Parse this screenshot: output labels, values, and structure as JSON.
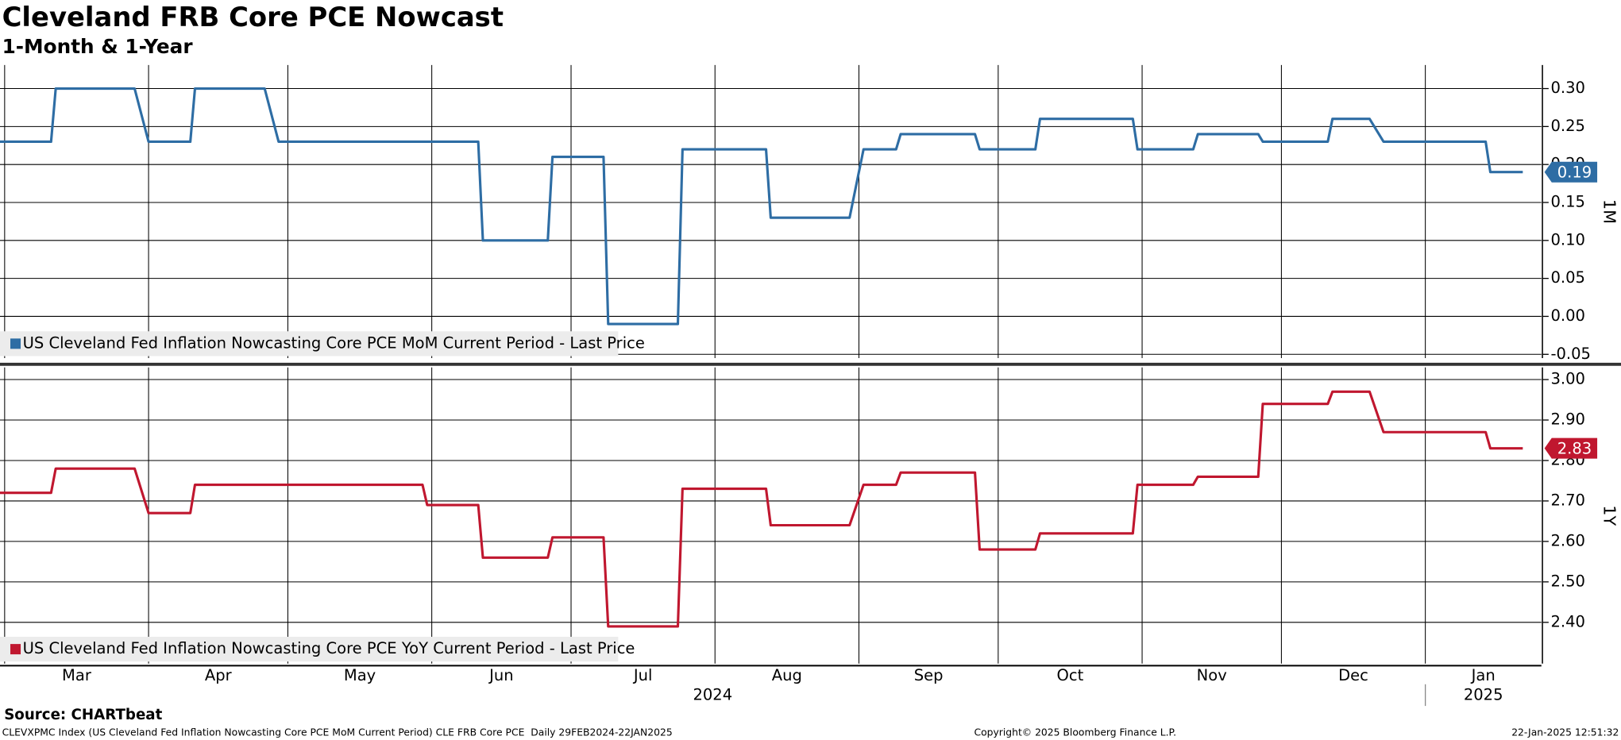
{
  "title": "Cleveland FRB Core PCE Nowcast",
  "subtitle": "1-Month & 1-Year",
  "source": "Source: CHARTbeat",
  "footer_left": "CLEVXPMC Index (US Cleveland Fed Inflation Nowcasting Core PCE MoM Current Period) CLE FRB Core PCE  Daily 29FEB2024-22JAN2025",
  "footer_center": "Copyright© 2025 Bloomberg Finance L.P.",
  "footer_right": "22-Jan-2025 12:51:32",
  "x_axis": {
    "xlim": [
      "2024-02-29",
      "2025-01-26"
    ],
    "months": [
      {
        "value": "2024-03",
        "label": "Mar"
      },
      {
        "value": "2024-04",
        "label": "Apr"
      },
      {
        "value": "2024-05",
        "label": "May"
      },
      {
        "value": "2024-06",
        "label": "Jun"
      },
      {
        "value": "2024-07",
        "label": "Jul"
      },
      {
        "value": "2024-08",
        "label": "Aug"
      },
      {
        "value": "2024-09",
        "label": "Sep"
      },
      {
        "value": "2024-10",
        "label": "Oct"
      },
      {
        "value": "2024-11",
        "label": "Nov"
      },
      {
        "value": "2024-12",
        "label": "Dec"
      },
      {
        "value": "2025-01",
        "label": "Jan"
      }
    ],
    "years": [
      "2024",
      "2025"
    ]
  },
  "chart_data": [
    {
      "type": "line",
      "axis_label": "1M",
      "grid": true,
      "ylim": [
        -0.055,
        0.331
      ],
      "yticks": [
        {
          "value": -0.05,
          "label": "-0.05"
        },
        {
          "value": 0,
          "label": "0.00"
        },
        {
          "value": 0.05,
          "label": "0.05"
        },
        {
          "value": 0.1,
          "label": "0.10"
        },
        {
          "value": 0.15,
          "label": "0.15"
        },
        {
          "value": 0.2,
          "label": "0.20"
        },
        {
          "value": 0.25,
          "label": "0.25"
        },
        {
          "value": 0.3,
          "label": "0.30"
        }
      ],
      "x": [
        "2024-02-29",
        "2024-03-11",
        "2024-03-12",
        "2024-03-29",
        "2024-04-01",
        "2024-04-10",
        "2024-04-11",
        "2024-04-26",
        "2024-04-29",
        "2024-06-11",
        "2024-06-12",
        "2024-06-26",
        "2024-06-27",
        "2024-07-08",
        "2024-07-09",
        "2024-07-24",
        "2024-07-25",
        "2024-08-12",
        "2024-08-13",
        "2024-08-30",
        "2024-09-02",
        "2024-09-09",
        "2024-09-10",
        "2024-09-26",
        "2024-09-27",
        "2024-10-09",
        "2024-10-10",
        "2024-10-30",
        "2024-10-31",
        "2024-11-12",
        "2024-11-13",
        "2024-11-26",
        "2024-11-27",
        "2024-12-11",
        "2024-12-12",
        "2024-12-20",
        "2024-12-23",
        "2025-01-14",
        "2025-01-15",
        "2025-01-22"
      ],
      "series": [
        {
          "name": "US Cleveland Fed Inflation Nowcasting Core PCE MoM Current Period - Last Price",
          "color": "#2e6da4",
          "values": [
            0.23,
            0.23,
            0.3,
            0.3,
            0.23,
            0.23,
            0.3,
            0.3,
            0.23,
            0.23,
            0.1,
            0.1,
            0.21,
            0.21,
            -0.01,
            -0.01,
            0.22,
            0.22,
            0.13,
            0.13,
            0.22,
            0.22,
            0.24,
            0.24,
            0.22,
            0.22,
            0.26,
            0.26,
            0.22,
            0.22,
            0.24,
            0.24,
            0.23,
            0.23,
            0.26,
            0.26,
            0.23,
            0.23,
            0.19,
            0.19
          ]
        }
      ]
    },
    {
      "type": "line",
      "axis_label": "1Y",
      "grid": true,
      "ylim": [
        2.298,
        3.03
      ],
      "yticks": [
        {
          "value": 2.4,
          "label": "2.40"
        },
        {
          "value": 2.5,
          "label": "2.50"
        },
        {
          "value": 2.6,
          "label": "2.60"
        },
        {
          "value": 2.7,
          "label": "2.70"
        },
        {
          "value": 2.8,
          "label": "2.80"
        },
        {
          "value": 2.9,
          "label": "2.90"
        },
        {
          "value": 3,
          "label": "3.00"
        }
      ],
      "x": [
        "2024-02-29",
        "2024-03-11",
        "2024-03-12",
        "2024-03-29",
        "2024-04-01",
        "2024-04-10",
        "2024-04-11",
        "2024-05-30",
        "2024-05-31",
        "2024-06-11",
        "2024-06-12",
        "2024-06-26",
        "2024-06-27",
        "2024-07-08",
        "2024-07-09",
        "2024-07-24",
        "2024-07-25",
        "2024-08-12",
        "2024-08-13",
        "2024-08-30",
        "2024-09-02",
        "2024-09-09",
        "2024-09-10",
        "2024-09-26",
        "2024-09-27",
        "2024-10-09",
        "2024-10-10",
        "2024-10-30",
        "2024-10-31",
        "2024-11-12",
        "2024-11-13",
        "2024-11-26",
        "2024-11-27",
        "2024-12-11",
        "2024-12-12",
        "2024-12-20",
        "2024-12-23",
        "2025-01-14",
        "2025-01-15",
        "2025-01-22"
      ],
      "series": [
        {
          "name": "US Cleveland Fed Inflation Nowcasting Core PCE YoY Current Period - Last Price",
          "color": "#c0172f",
          "values": [
            2.72,
            2.72,
            2.78,
            2.78,
            2.67,
            2.67,
            2.74,
            2.74,
            2.69,
            2.69,
            2.56,
            2.56,
            2.61,
            2.61,
            2.39,
            2.39,
            2.73,
            2.73,
            2.64,
            2.64,
            2.74,
            2.74,
            2.77,
            2.77,
            2.58,
            2.58,
            2.62,
            2.62,
            2.74,
            2.74,
            2.76,
            2.76,
            2.94,
            2.94,
            2.97,
            2.97,
            2.87,
            2.87,
            2.83,
            2.83
          ]
        }
      ]
    }
  ]
}
